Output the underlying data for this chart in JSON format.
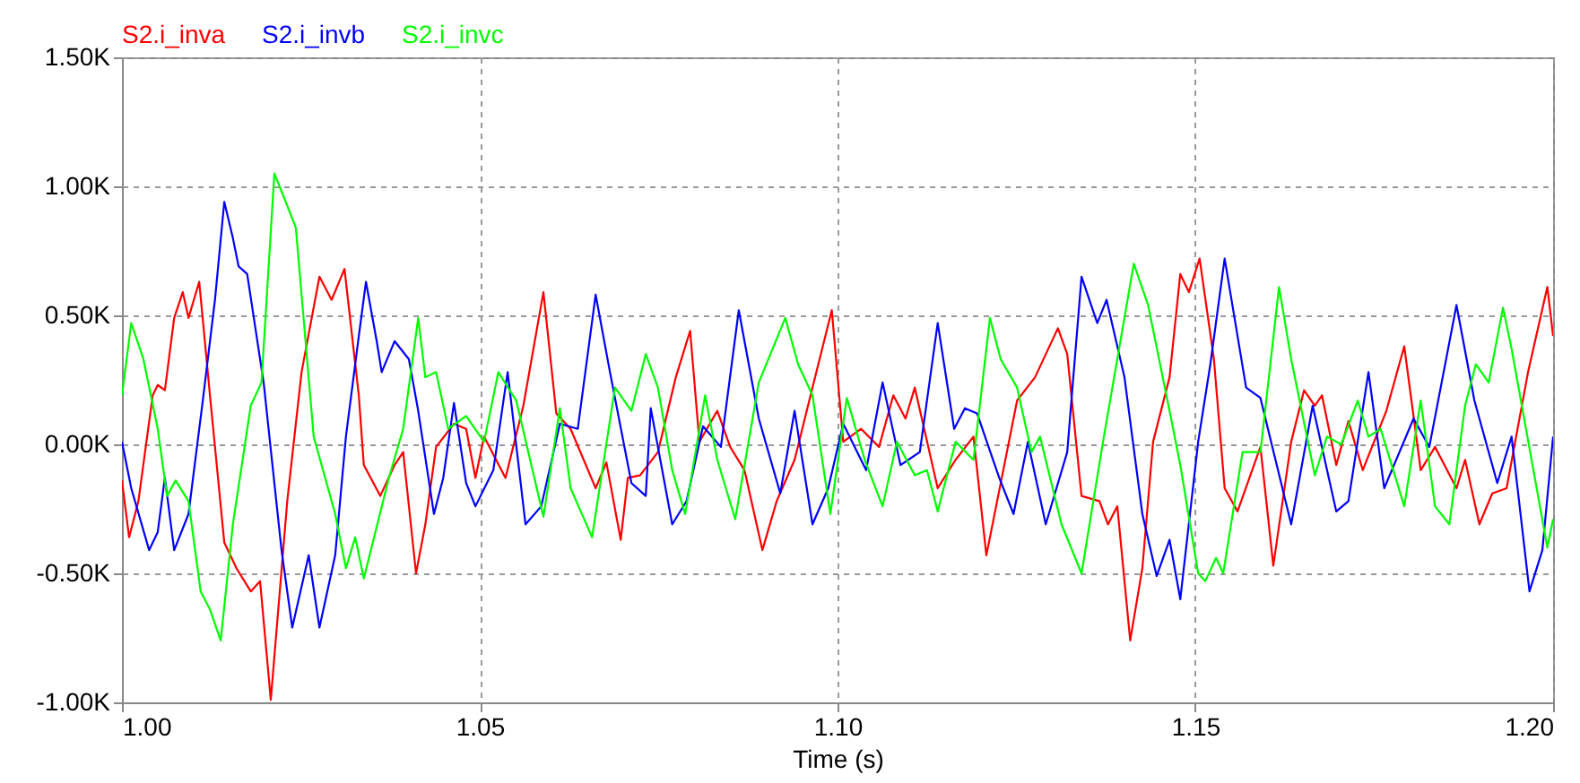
{
  "chart_data": {
    "type": "line",
    "xlabel": "Time  (s)",
    "xlim": [
      1.0,
      1.2
    ],
    "xticks": [
      {
        "value": 1.0,
        "label": "1.00"
      },
      {
        "value": 1.05,
        "label": "1.05"
      },
      {
        "value": 1.1,
        "label": "1.10"
      },
      {
        "value": 1.15,
        "label": "1.15"
      },
      {
        "value": 1.2,
        "label": "1.20"
      }
    ],
    "ylim": [
      -1.0,
      1.5
    ],
    "yticks": [
      {
        "value": -1.0,
        "label": "-1.00K"
      },
      {
        "value": -0.5,
        "label": "-0.50K"
      },
      {
        "value": 0.0,
        "label": "0.00K"
      },
      {
        "value": 0.5,
        "label": "0.50K"
      },
      {
        "value": 1.0,
        "label": "1.00K"
      },
      {
        "value": 1.5,
        "label": "1.50K"
      }
    ],
    "grid": true,
    "legend": "top left",
    "marker": "none",
    "line_style": "solid",
    "series": [
      {
        "name": "S2.i_inva",
        "color": "#ff0000",
        "x": [
          1.0,
          1.001,
          1.0023,
          1.0043,
          1.005,
          1.006,
          1.0073,
          1.0085,
          1.0093,
          1.0108,
          1.0123,
          1.0143,
          1.016,
          1.018,
          1.0193,
          1.0208,
          1.0231,
          1.0251,
          1.0276,
          1.0293,
          1.0311,
          1.0331,
          1.0338,
          1.0361,
          1.0381,
          1.0393,
          1.0411,
          1.0424,
          1.0439,
          1.0464,
          1.0481,
          1.0494,
          1.0506,
          1.0536,
          1.0561,
          1.0589,
          1.0607,
          1.0627,
          1.0662,
          1.0677,
          1.0697,
          1.0707,
          1.0724,
          1.0749,
          1.0774,
          1.0794,
          1.0807,
          1.0832,
          1.085,
          1.087,
          1.0895,
          1.0915,
          1.094,
          1.0965,
          1.0992,
          1.1008,
          1.1033,
          1.1058,
          1.1078,
          1.1095,
          1.1108,
          1.114,
          1.1165,
          1.119,
          1.1208,
          1.1251,
          1.1276,
          1.1308,
          1.1321,
          1.1341,
          1.1366,
          1.1378,
          1.1391,
          1.1409,
          1.1426,
          1.1441,
          1.1464,
          1.1479,
          1.1491,
          1.1506,
          1.1526,
          1.1541,
          1.1559,
          1.1591,
          1.1609,
          1.1634,
          1.1652,
          1.1667,
          1.1677,
          1.1697,
          1.1714,
          1.1734,
          1.1767,
          1.1792,
          1.1815,
          1.1835,
          1.1865,
          1.1877,
          1.1897,
          1.1915,
          1.1935,
          1.1965,
          1.1992,
          1.2
        ],
        "values": [
          -0.14,
          -0.36,
          -0.22,
          0.19,
          0.23,
          0.21,
          0.49,
          0.59,
          0.49,
          0.63,
          0.19,
          -0.38,
          -0.48,
          -0.57,
          -0.53,
          -0.99,
          -0.22,
          0.28,
          0.65,
          0.56,
          0.68,
          0.19,
          -0.08,
          -0.2,
          -0.08,
          -0.03,
          -0.5,
          -0.31,
          -0.01,
          0.08,
          0.06,
          -0.13,
          0.03,
          -0.13,
          0.15,
          0.59,
          0.12,
          0.06,
          -0.17,
          -0.07,
          -0.37,
          -0.13,
          -0.12,
          -0.03,
          0.26,
          0.44,
          0.01,
          0.13,
          -0.01,
          -0.1,
          -0.41,
          -0.22,
          -0.06,
          0.22,
          0.52,
          0.01,
          0.06,
          -0.01,
          0.19,
          0.1,
          0.22,
          -0.17,
          -0.06,
          0.03,
          -0.43,
          0.17,
          0.26,
          0.45,
          0.35,
          -0.2,
          -0.22,
          -0.31,
          -0.24,
          -0.76,
          -0.48,
          0.01,
          0.26,
          0.66,
          0.59,
          0.72,
          0.33,
          -0.17,
          -0.26,
          -0.01,
          -0.47,
          0.01,
          0.21,
          0.15,
          0.19,
          -0.08,
          0.09,
          -0.1,
          0.13,
          0.38,
          -0.1,
          -0.01,
          -0.17,
          -0.06,
          -0.31,
          -0.19,
          -0.17,
          0.28,
          0.61,
          0.42
        ]
      },
      {
        "name": "S2.i_invb",
        "color": "#0000ff",
        "x": [
          1.0,
          1.0013,
          1.0038,
          1.005,
          1.006,
          1.0073,
          1.0093,
          1.0113,
          1.013,
          1.0143,
          1.0155,
          1.0163,
          1.0175,
          1.0198,
          1.0223,
          1.0238,
          1.0261,
          1.0276,
          1.0298,
          1.0313,
          1.0331,
          1.0341,
          1.0356,
          1.0363,
          1.0381,
          1.0401,
          1.0414,
          1.0436,
          1.0449,
          1.0464,
          1.0481,
          1.0494,
          1.0519,
          1.0539,
          1.0564,
          1.0586,
          1.0612,
          1.0637,
          1.0662,
          1.0682,
          1.0712,
          1.0732,
          1.0739,
          1.0769,
          1.0789,
          1.0812,
          1.0837,
          1.0862,
          1.089,
          1.092,
          1.094,
          1.0965,
          1.0987,
          1.1008,
          1.104,
          1.1063,
          1.1088,
          1.1115,
          1.114,
          1.1163,
          1.1178,
          1.1195,
          1.1226,
          1.1246,
          1.1266,
          1.1291,
          1.1321,
          1.1341,
          1.1363,
          1.1376,
          1.1401,
          1.1426,
          1.1446,
          1.1464,
          1.1479,
          1.1504,
          1.1521,
          1.1541,
          1.1571,
          1.1591,
          1.1634,
          1.1664,
          1.1697,
          1.1714,
          1.1742,
          1.1764,
          1.1805,
          1.1827,
          1.1865,
          1.189,
          1.1922,
          1.1942,
          1.1967,
          1.1985,
          1.2
        ],
        "values": [
          0.01,
          -0.17,
          -0.41,
          -0.34,
          -0.13,
          -0.41,
          -0.27,
          0.17,
          0.56,
          0.94,
          0.8,
          0.69,
          0.66,
          0.24,
          -0.41,
          -0.71,
          -0.43,
          -0.71,
          -0.43,
          0.03,
          0.42,
          0.63,
          0.4,
          0.28,
          0.4,
          0.33,
          0.13,
          -0.27,
          -0.13,
          0.16,
          -0.15,
          -0.24,
          -0.1,
          0.28,
          -0.31,
          -0.24,
          0.08,
          0.06,
          0.58,
          0.28,
          -0.15,
          -0.2,
          0.14,
          -0.31,
          -0.22,
          0.07,
          -0.01,
          0.52,
          0.1,
          -0.19,
          0.13,
          -0.31,
          -0.17,
          0.08,
          -0.1,
          0.24,
          -0.08,
          -0.03,
          0.47,
          0.06,
          0.14,
          0.12,
          -0.13,
          -0.27,
          0.01,
          -0.31,
          -0.03,
          0.65,
          0.47,
          0.56,
          0.26,
          -0.27,
          -0.51,
          -0.37,
          -0.6,
          0.01,
          0.31,
          0.72,
          0.22,
          0.18,
          -0.31,
          0.15,
          -0.26,
          -0.22,
          0.28,
          -0.17,
          0.1,
          -0.01,
          0.54,
          0.17,
          -0.15,
          0.03,
          -0.57,
          -0.41,
          0.03
        ]
      },
      {
        "name": "S2.i_invc",
        "color": "#00ff00",
        "x": [
          1.0,
          1.0013,
          1.003,
          1.005,
          1.0063,
          1.0075,
          1.0093,
          1.011,
          1.0123,
          1.0138,
          1.0155,
          1.018,
          1.0195,
          1.0213,
          1.0226,
          1.0243,
          1.0268,
          1.0298,
          1.0313,
          1.0326,
          1.0338,
          1.0373,
          1.0393,
          1.0414,
          1.0424,
          1.0439,
          1.0456,
          1.0481,
          1.0506,
          1.0526,
          1.0551,
          1.0589,
          1.0612,
          1.0627,
          1.0657,
          1.0689,
          1.0712,
          1.0732,
          1.0749,
          1.0769,
          1.0787,
          1.0815,
          1.0832,
          1.0857,
          1.089,
          1.0927,
          1.0945,
          1.0965,
          1.099,
          1.1013,
          1.1038,
          1.1063,
          1.1083,
          1.1108,
          1.1125,
          1.114,
          1.1165,
          1.119,
          1.1213,
          1.1228,
          1.1251,
          1.1271,
          1.1283,
          1.1313,
          1.1341,
          1.1371,
          1.1414,
          1.1434,
          1.1464,
          1.1479,
          1.1504,
          1.1514,
          1.1529,
          1.1539,
          1.1566,
          1.1591,
          1.1617,
          1.1634,
          1.1667,
          1.1684,
          1.1704,
          1.1727,
          1.1742,
          1.1759,
          1.1792,
          1.1815,
          1.1835,
          1.1855,
          1.1877,
          1.1892,
          1.191,
          1.193,
          1.1942,
          1.1992,
          1.2
        ],
        "values": [
          0.19,
          0.47,
          0.33,
          0.06,
          -0.2,
          -0.14,
          -0.22,
          -0.57,
          -0.64,
          -0.76,
          -0.31,
          0.15,
          0.24,
          1.05,
          0.96,
          0.84,
          0.03,
          -0.27,
          -0.48,
          -0.36,
          -0.52,
          -0.13,
          0.06,
          0.49,
          0.26,
          0.28,
          0.06,
          0.11,
          0.01,
          0.28,
          0.17,
          -0.28,
          0.14,
          -0.17,
          -0.36,
          0.22,
          0.13,
          0.35,
          0.22,
          -0.1,
          -0.27,
          0.19,
          -0.06,
          -0.29,
          0.24,
          0.49,
          0.31,
          0.19,
          -0.27,
          0.18,
          -0.06,
          -0.24,
          0.01,
          -0.12,
          -0.1,
          -0.26,
          0.01,
          -0.06,
          0.49,
          0.33,
          0.22,
          -0.03,
          0.03,
          -0.31,
          -0.5,
          0.01,
          0.7,
          0.54,
          0.13,
          -0.08,
          -0.5,
          -0.53,
          -0.44,
          -0.5,
          -0.03,
          -0.03,
          0.61,
          0.33,
          -0.12,
          0.03,
          0.0,
          0.17,
          0.03,
          0.06,
          -0.24,
          0.17,
          -0.24,
          -0.31,
          0.15,
          0.31,
          0.24,
          0.53,
          0.37,
          -0.4,
          -0.29
        ]
      }
    ]
  }
}
